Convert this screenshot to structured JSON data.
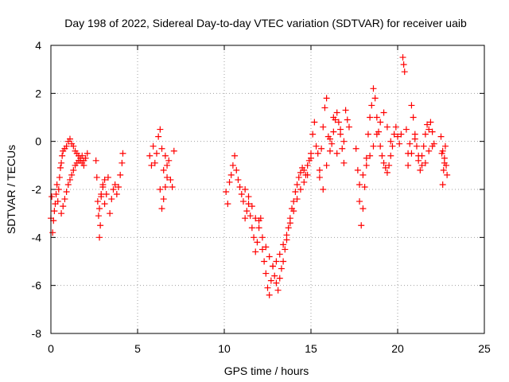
{
  "chart_data": {
    "type": "scatter",
    "title": "Day 198 of 2022, Sidereal Day-to-day VTEC variation (SDTVAR) for receiver uaib",
    "xlabel": "GPS time / hours",
    "ylabel": "SDTVAR / TECUs",
    "xlim": [
      0,
      25
    ],
    "ylim": [
      -8,
      4
    ],
    "x_ticks": [
      0,
      5,
      10,
      15,
      20,
      25
    ],
    "x_tick_labels": [
      "0",
      "5",
      "10",
      "15",
      "20",
      "25"
    ],
    "y_ticks": [
      -8,
      -6,
      -4,
      -2,
      0,
      2,
      4
    ],
    "y_tick_labels": [
      "-8",
      "-6",
      "-4",
      "-2",
      "0",
      "2",
      "4"
    ],
    "grid": true,
    "marker": "+",
    "color": "#ff0000",
    "series": [
      {
        "name": "SDTVAR",
        "x": [
          0.0,
          0.05,
          0.1,
          0.15,
          0.2,
          0.25,
          0.3,
          0.35,
          0.4,
          0.45,
          0.5,
          0.55,
          0.6,
          0.65,
          0.7,
          0.8,
          0.9,
          1.0,
          1.1,
          1.2,
          1.3,
          1.4,
          1.5,
          1.6,
          1.7,
          1.8,
          1.9,
          2.0,
          2.1,
          0.6,
          0.7,
          0.8,
          0.9,
          1.0,
          1.1,
          1.2,
          1.3,
          1.4,
          1.5,
          1.6,
          1.7,
          1.8,
          1.9,
          2.6,
          2.65,
          2.7,
          2.75,
          2.8,
          2.85,
          2.9,
          3.0,
          3.1,
          3.2,
          3.3,
          3.4,
          3.5,
          3.6,
          3.7,
          3.8,
          3.9,
          4.0,
          4.1,
          4.15,
          2.8,
          2.9,
          3.0,
          3.1,
          5.7,
          5.8,
          5.9,
          6.0,
          6.1,
          6.2,
          6.3,
          6.4,
          6.5,
          6.6,
          6.7,
          6.8,
          6.9,
          7.0,
          7.1,
          6.3,
          6.4,
          6.5,
          6.6,
          6.7,
          10.1,
          10.2,
          10.3,
          10.4,
          10.5,
          10.6,
          10.7,
          10.8,
          10.9,
          11.0,
          11.1,
          11.2,
          11.3,
          11.4,
          11.5,
          11.6,
          11.7,
          11.8,
          11.9,
          12.0,
          12.1,
          12.2,
          12.3,
          12.4,
          12.5,
          12.6,
          12.7,
          12.8,
          12.9,
          13.0,
          13.1,
          13.2,
          13.3,
          13.4,
          13.5,
          13.6,
          13.7,
          13.8,
          13.9,
          14.0,
          14.1,
          14.2,
          14.3,
          14.4,
          14.5,
          14.6,
          14.7,
          14.8,
          14.9,
          15.0,
          11.2,
          11.4,
          11.6,
          11.8,
          12.0,
          12.2,
          12.4,
          12.6,
          12.8,
          13.0,
          13.2,
          13.4,
          13.6,
          13.8,
          14.0,
          14.2,
          14.4,
          14.6,
          14.8,
          15.0,
          15.1,
          15.2,
          15.3,
          15.4,
          15.5,
          15.6,
          15.7,
          15.8,
          15.9,
          16.0,
          16.1,
          16.2,
          16.3,
          16.4,
          16.5,
          16.6,
          16.7,
          16.8,
          16.9,
          17.0,
          17.1,
          17.2,
          15.5,
          15.7,
          15.9,
          16.1,
          16.3,
          16.5,
          16.7,
          16.9,
          17.6,
          17.7,
          17.8,
          17.9,
          18.0,
          18.1,
          18.2,
          18.3,
          18.4,
          18.5,
          18.6,
          18.7,
          18.8,
          18.9,
          19.0,
          19.1,
          19.2,
          19.3,
          19.4,
          19.5,
          19.6,
          19.7,
          19.8,
          19.9,
          20.0,
          20.1,
          20.2,
          17.8,
          18.0,
          18.2,
          18.4,
          18.6,
          18.8,
          19.0,
          19.2,
          19.4,
          19.6,
          20.3,
          20.35,
          20.4,
          20.5,
          20.6,
          20.7,
          20.8,
          20.9,
          21.0,
          21.1,
          21.2,
          21.3,
          21.4,
          21.5,
          21.6,
          21.7,
          21.8,
          21.9,
          22.0,
          22.1,
          20.6,
          20.8,
          21.0,
          21.2,
          21.4,
          21.6,
          21.8,
          22.0,
          22.5,
          22.55,
          22.6,
          22.65,
          22.7,
          22.75,
          22.8,
          22.85,
          22.6,
          22.7
        ],
        "y": [
          -3.2,
          -2.3,
          -3.8,
          -3.3,
          -2.9,
          -2.6,
          -2.2,
          -1.8,
          -2.5,
          -2.0,
          -1.5,
          -1.1,
          -0.9,
          -0.6,
          -0.4,
          -0.3,
          -0.2,
          0.0,
          0.1,
          -0.1,
          -0.2,
          -0.4,
          -0.5,
          -0.6,
          -0.8,
          -0.9,
          -1.0,
          -0.7,
          -0.5,
          -3.0,
          -2.7,
          -2.4,
          -2.1,
          -1.8,
          -1.6,
          -1.4,
          -1.2,
          -1.0,
          -0.9,
          -0.8,
          -0.7,
          -0.6,
          -0.8,
          -0.8,
          -1.5,
          -2.5,
          -3.1,
          -4.0,
          -3.5,
          -2.2,
          -1.8,
          -2.6,
          -2.2,
          -1.5,
          -3.0,
          -2.4,
          -2.0,
          -1.8,
          -2.2,
          -1.9,
          -1.4,
          -0.9,
          -0.5,
          -2.8,
          -2.3,
          -1.9,
          -1.6,
          -0.6,
          -1.0,
          -0.2,
          -0.9,
          -0.5,
          0.2,
          0.5,
          -0.3,
          -1.2,
          -0.6,
          -1.5,
          -0.8,
          -1.6,
          -1.9,
          -0.4,
          -2.0,
          -2.8,
          -2.4,
          -1.9,
          -1.0,
          -2.1,
          -2.6,
          -1.7,
          -1.4,
          -1.0,
          -0.6,
          -1.2,
          -1.6,
          -1.9,
          -2.2,
          -2.5,
          -3.2,
          -2.9,
          -2.6,
          -3.1,
          -3.6,
          -4.0,
          -4.6,
          -4.2,
          -3.3,
          -3.2,
          -4.5,
          -5.0,
          -5.5,
          -6.1,
          -6.4,
          -5.8,
          -5.2,
          -5.6,
          -5.9,
          -6.2,
          -5.7,
          -5.3,
          -5.0,
          -4.5,
          -4.1,
          -3.6,
          -3.2,
          -2.8,
          -2.5,
          -2.1,
          -1.8,
          -1.5,
          -1.3,
          -1.1,
          -1.2,
          -1.4,
          -1.0,
          -0.8,
          -0.5,
          -2.0,
          -2.3,
          -2.7,
          -3.2,
          -3.6,
          -4.0,
          -4.4,
          -4.8,
          -5.2,
          -5.0,
          -4.7,
          -4.3,
          -3.9,
          -3.4,
          -2.9,
          -2.4,
          -2.0,
          -1.7,
          -1.4,
          -0.7,
          0.3,
          0.8,
          -0.2,
          -0.5,
          -1.2,
          -0.3,
          0.6,
          1.4,
          1.8,
          0.2,
          -0.4,
          -0.1,
          0.4,
          0.9,
          1.2,
          0.8,
          0.3,
          -0.3,
          -0.9,
          1.3,
          0.9,
          0.6,
          -1.5,
          -2.0,
          -1.0,
          0.1,
          1.0,
          -0.5,
          0.5,
          0.0,
          -0.3,
          -1.2,
          -2.5,
          -3.5,
          -2.8,
          -1.9,
          -0.7,
          0.3,
          1.0,
          1.5,
          2.2,
          1.8,
          1.0,
          0.4,
          -0.2,
          -0.6,
          -0.9,
          -1.1,
          -1.3,
          -1.0,
          -0.6,
          -0.2,
          0.3,
          0.6,
          0.2,
          -0.1,
          0.3,
          -1.8,
          -1.4,
          -1.0,
          -0.6,
          -0.2,
          0.3,
          0.8,
          1.2,
          0.6,
          0.0,
          3.5,
          3.2,
          2.9,
          0.5,
          -0.5,
          -0.1,
          1.5,
          1.0,
          0.3,
          -0.2,
          -0.8,
          -1.2,
          -0.6,
          -0.2,
          0.3,
          0.7,
          0.5,
          0.8,
          0.4,
          -0.1,
          -1.0,
          -0.5,
          0.1,
          -0.6,
          -1.0,
          -0.9,
          -0.4,
          -0.2,
          0.2,
          -0.5,
          -1.8,
          -1.2,
          -0.7,
          -0.2,
          -1.0,
          -1.4,
          -0.4,
          -0.9
        ]
      }
    ]
  }
}
